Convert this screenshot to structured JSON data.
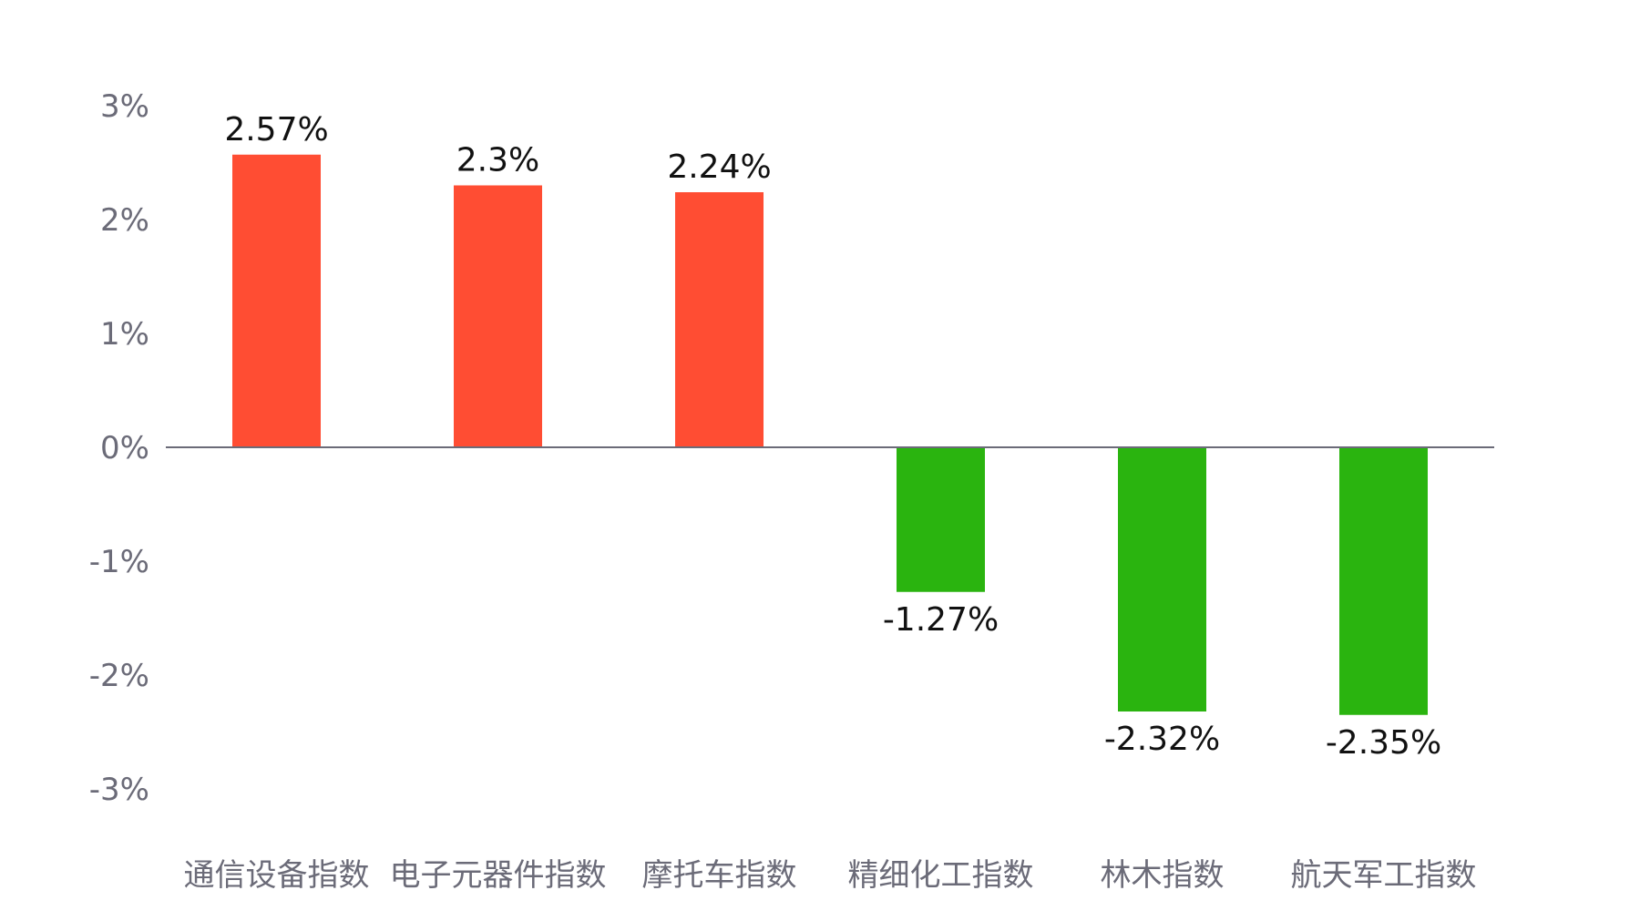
{
  "chart_data": {
    "type": "bar",
    "title": "",
    "xlabel": "",
    "ylabel": "",
    "categories": [
      "通信设备指数",
      "电子元器件指数",
      "摩托车指数",
      "精细化工指数",
      "林木指数",
      "航天军工指数"
    ],
    "values": [
      2.57,
      2.3,
      2.24,
      -1.27,
      -2.32,
      -2.35
    ],
    "value_labels": [
      "2.57%",
      "2.3%",
      "2.24%",
      "-1.27%",
      "-2.32%",
      "-2.35%"
    ],
    "ylim": [
      -3,
      3
    ],
    "yticks": [
      3,
      2,
      1,
      0,
      -1,
      -2,
      -3
    ],
    "ytick_labels": [
      "3%",
      "2%",
      "1%",
      "0%",
      "-1%",
      "-2%",
      "-3%"
    ],
    "grid": false,
    "legend": "none",
    "colors": {
      "positive": "#ff4d33",
      "negative": "#2ab40f",
      "zero_line": "#6b6b78",
      "tick_text": "#6b6b78",
      "label_text": "#111111"
    }
  }
}
